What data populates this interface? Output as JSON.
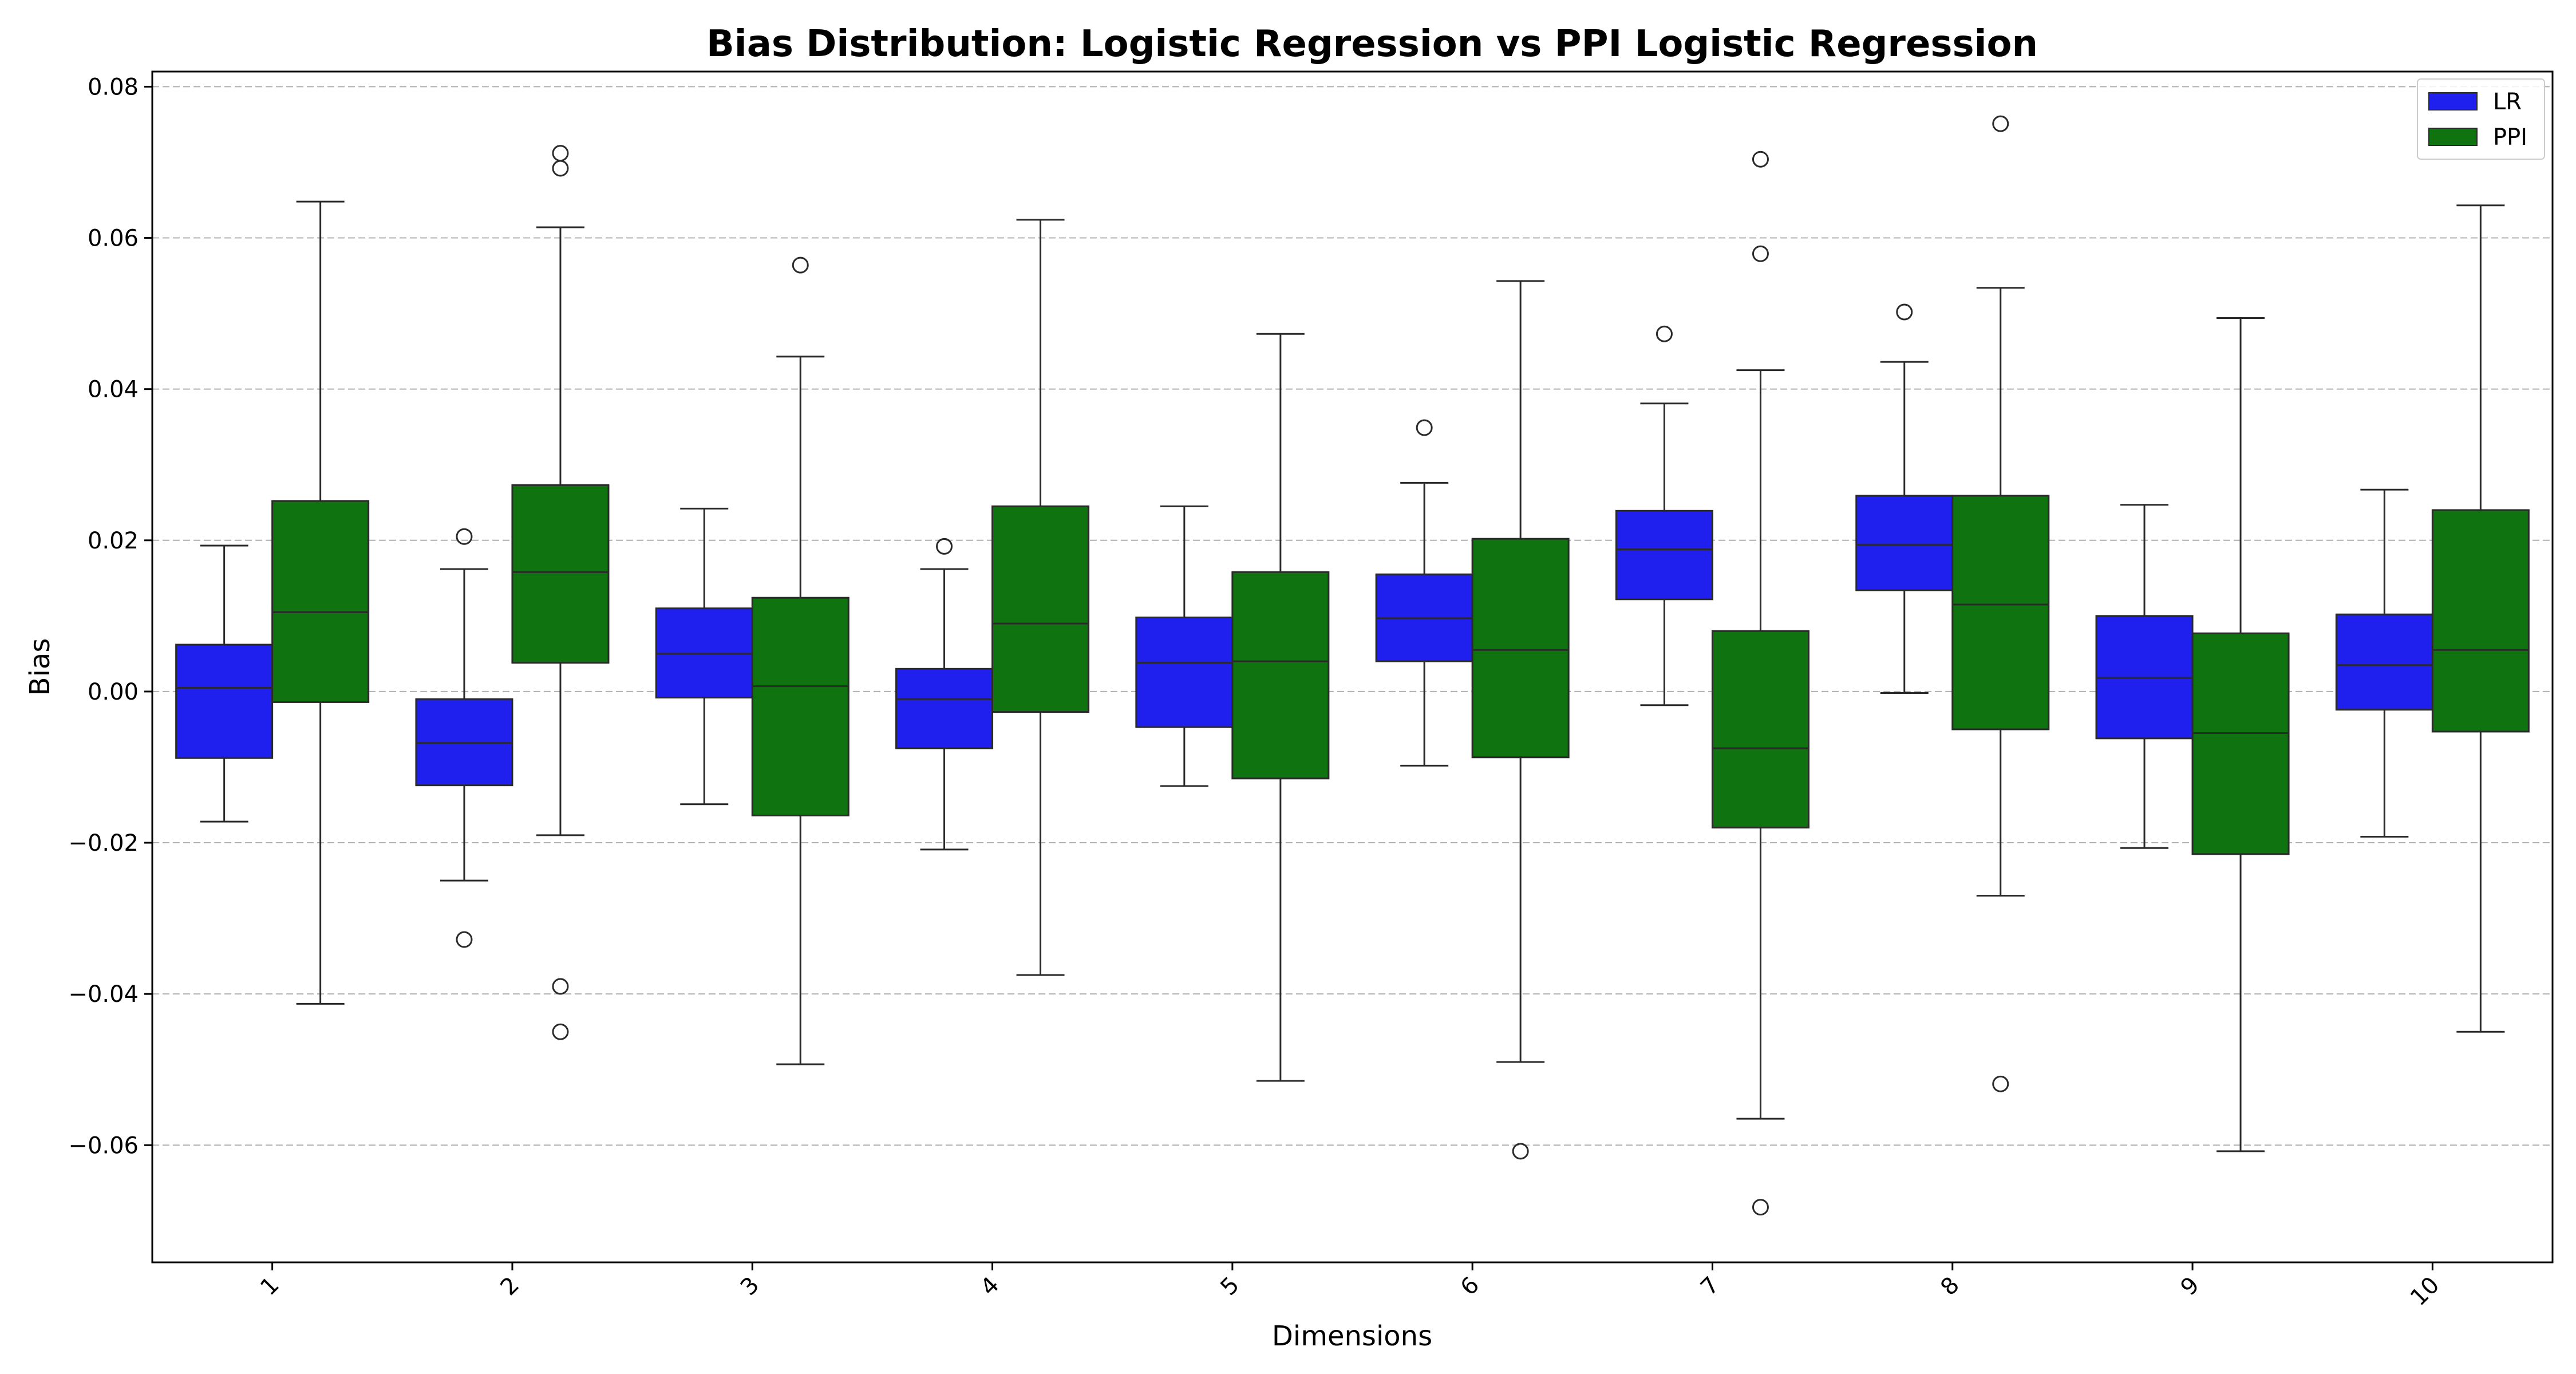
{
  "chart_data": {
    "type": "box",
    "title": "Bias Distribution: Logistic Regression vs PPI Logistic Regression",
    "xlabel": "Dimensions",
    "ylabel": "Bias",
    "categories": [
      "1",
      "2",
      "3",
      "4",
      "5",
      "6",
      "7",
      "8",
      "9",
      "10"
    ],
    "ylim": [
      -0.0755,
      0.082
    ],
    "yticks": [
      -0.06,
      -0.04,
      -0.02,
      0.0,
      0.02,
      0.04,
      0.06,
      0.08
    ],
    "ytick_labels": [
      "−0.06",
      "−0.04",
      "−0.02",
      "0.00",
      "0.02",
      "0.04",
      "0.06",
      "0.08"
    ],
    "grid": "y-dashed",
    "legend_position": "top-right",
    "series": [
      {
        "name": "LR",
        "color": "#1f1fee",
        "boxes": [
          {
            "whislo": -0.0172,
            "q1": -0.0088,
            "med": 0.0005,
            "q3": 0.0062,
            "whishi": 0.0193,
            "fliers": []
          },
          {
            "whislo": -0.025,
            "q1": -0.0124,
            "med": -0.0068,
            "q3": -0.001,
            "whishi": 0.0162,
            "fliers": [
              0.0205,
              -0.0328
            ]
          },
          {
            "whislo": -0.0149,
            "q1": -0.0008,
            "med": 0.005,
            "q3": 0.011,
            "whishi": 0.0242,
            "fliers": []
          },
          {
            "whislo": -0.0209,
            "q1": -0.0075,
            "med": -0.001,
            "q3": 0.003,
            "whishi": 0.0162,
            "fliers": [
              0.0192
            ]
          },
          {
            "whislo": -0.0125,
            "q1": -0.0047,
            "med": 0.0038,
            "q3": 0.0098,
            "whishi": 0.0245,
            "fliers": []
          },
          {
            "whislo": -0.0098,
            "q1": 0.004,
            "med": 0.0097,
            "q3": 0.0155,
            "whishi": 0.0276,
            "fliers": [
              0.0349
            ]
          },
          {
            "whislo": -0.0018,
            "q1": 0.0122,
            "med": 0.0188,
            "q3": 0.0239,
            "whishi": 0.0381,
            "fliers": [
              0.0473
            ]
          },
          {
            "whislo": -0.0002,
            "q1": 0.0134,
            "med": 0.0194,
            "q3": 0.0259,
            "whishi": 0.0436,
            "fliers": [
              0.0502
            ]
          },
          {
            "whislo": -0.0207,
            "q1": -0.0062,
            "med": 0.0018,
            "q3": 0.01,
            "whishi": 0.0247,
            "fliers": []
          },
          {
            "whislo": -0.0192,
            "q1": -0.0024,
            "med": 0.0035,
            "q3": 0.0102,
            "whishi": 0.0267,
            "fliers": []
          }
        ]
      },
      {
        "name": "PPI",
        "color": "#0f730f",
        "boxes": [
          {
            "whislo": -0.0413,
            "q1": -0.0014,
            "med": 0.0105,
            "q3": 0.0252,
            "whishi": 0.0648,
            "fliers": []
          },
          {
            "whislo": -0.019,
            "q1": 0.0038,
            "med": 0.0158,
            "q3": 0.0273,
            "whishi": 0.0614,
            "fliers": [
              0.0712,
              0.0692,
              -0.039,
              -0.045
            ]
          },
          {
            "whislo": -0.0493,
            "q1": -0.0164,
            "med": 0.0007,
            "q3": 0.0124,
            "whishi": 0.0443,
            "fliers": [
              0.0564
            ]
          },
          {
            "whislo": -0.0375,
            "q1": -0.0027,
            "med": 0.009,
            "q3": 0.0245,
            "whishi": 0.0624,
            "fliers": []
          },
          {
            "whislo": -0.0515,
            "q1": -0.0115,
            "med": 0.004,
            "q3": 0.0158,
            "whishi": 0.0473,
            "fliers": []
          },
          {
            "whislo": -0.049,
            "q1": -0.0087,
            "med": 0.0055,
            "q3": 0.0202,
            "whishi": 0.0543,
            "fliers": [
              -0.0608
            ]
          },
          {
            "whislo": -0.0565,
            "q1": -0.018,
            "med": -0.0075,
            "q3": 0.008,
            "whishi": 0.0425,
            "fliers": [
              0.0704,
              0.0579,
              -0.0682
            ]
          },
          {
            "whislo": -0.027,
            "q1": -0.005,
            "med": 0.0115,
            "q3": 0.0259,
            "whishi": 0.0534,
            "fliers": [
              0.0751,
              -0.0519
            ]
          },
          {
            "whislo": -0.0608,
            "q1": -0.0215,
            "med": -0.0055,
            "q3": 0.0077,
            "whishi": 0.0494,
            "fliers": []
          },
          {
            "whislo": -0.045,
            "q1": -0.0053,
            "med": 0.0055,
            "q3": 0.024,
            "whishi": 0.0643,
            "fliers": []
          }
        ]
      }
    ]
  }
}
